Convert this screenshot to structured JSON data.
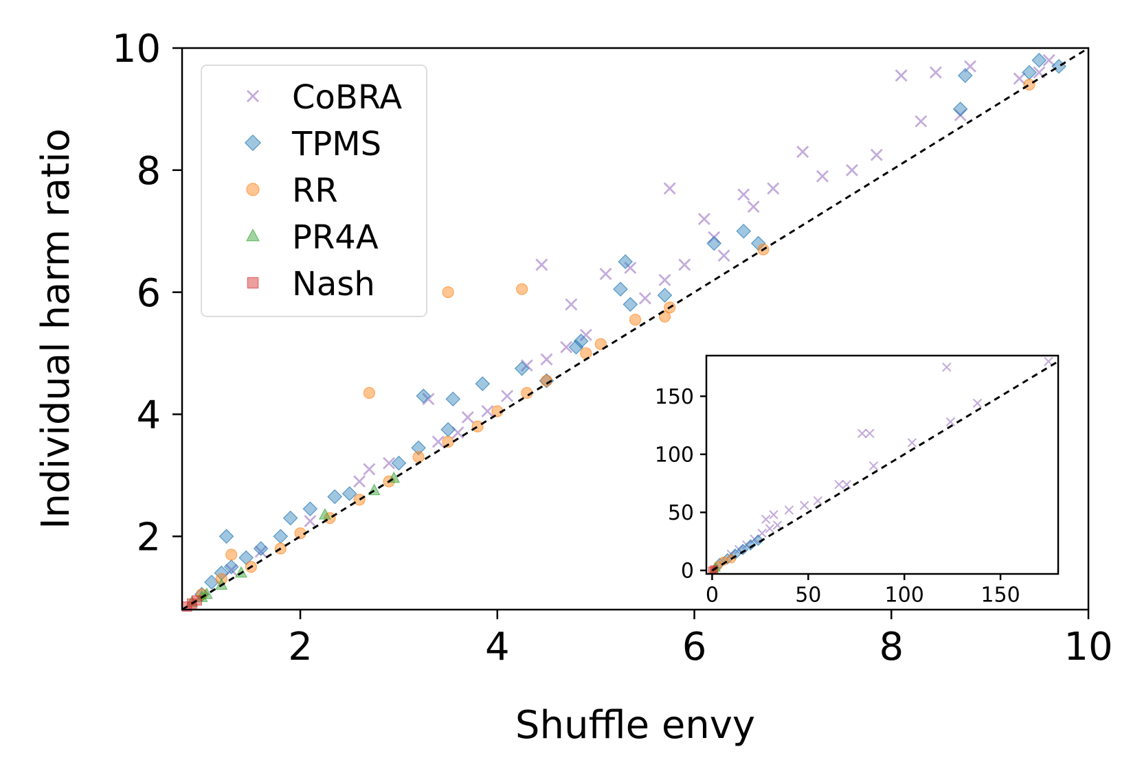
{
  "chart_data": [
    {
      "type": "scatter",
      "title": "",
      "xlabel": "Shuffle envy",
      "ylabel": "Individual harm ratio",
      "xlim": [
        0.8,
        10
      ],
      "ylim": [
        0.8,
        10
      ],
      "xticks": [
        "2",
        "4",
        "6",
        "8",
        "10"
      ],
      "yticks": [
        "2",
        "4",
        "6",
        "8",
        "10"
      ],
      "grid": false,
      "legend_position": "top-left",
      "reference_line": {
        "style": "dashed",
        "color": "#000000",
        "from": [
          0.8,
          0.8
        ],
        "to": [
          10,
          10
        ]
      },
      "series": [
        {
          "name": "CoBRA",
          "marker": "x",
          "color": "#9467bd",
          "points": [
            [
              1.3,
              1.45
            ],
            [
              1.6,
              1.75
            ],
            [
              2.1,
              2.25
            ],
            [
              2.6,
              2.9
            ],
            [
              2.7,
              3.1
            ],
            [
              2.9,
              3.2
            ],
            [
              3.3,
              4.25
            ],
            [
              3.4,
              3.55
            ],
            [
              3.6,
              3.7
            ],
            [
              3.7,
              3.95
            ],
            [
              3.9,
              4.05
            ],
            [
              4.1,
              4.3
            ],
            [
              4.3,
              4.8
            ],
            [
              4.5,
              4.9
            ],
            [
              4.7,
              5.1
            ],
            [
              4.75,
              5.8
            ],
            [
              4.9,
              5.3
            ],
            [
              5.1,
              6.3
            ],
            [
              5.35,
              6.4
            ],
            [
              5.5,
              5.9
            ],
            [
              5.7,
              6.2
            ],
            [
              5.9,
              6.45
            ],
            [
              6.1,
              7.2
            ],
            [
              6.2,
              6.9
            ],
            [
              6.3,
              6.6
            ],
            [
              6.5,
              7.6
            ],
            [
              6.6,
              7.4
            ],
            [
              6.8,
              7.7
            ],
            [
              7.1,
              8.3
            ],
            [
              7.3,
              7.9
            ],
            [
              7.6,
              8.0
            ],
            [
              7.85,
              8.25
            ],
            [
              8.3,
              8.8
            ],
            [
              8.7,
              8.9
            ],
            [
              8.8,
              9.7
            ],
            [
              9.3,
              9.5
            ],
            [
              9.5,
              9.6
            ],
            [
              9.6,
              9.8
            ],
            [
              5.75,
              7.7
            ],
            [
              4.45,
              6.45
            ],
            [
              8.45,
              9.6
            ],
            [
              8.1,
              9.55
            ]
          ]
        },
        {
          "name": "TPMS",
          "marker": "D",
          "color": "#1f77b4",
          "points": [
            [
              1.0,
              1.05
            ],
            [
              1.1,
              1.25
            ],
            [
              1.2,
              1.4
            ],
            [
              1.25,
              2.0
            ],
            [
              1.3,
              1.5
            ],
            [
              1.45,
              1.65
            ],
            [
              1.6,
              1.8
            ],
            [
              1.8,
              2.0
            ],
            [
              1.9,
              2.3
            ],
            [
              2.1,
              2.45
            ],
            [
              2.35,
              2.65
            ],
            [
              2.5,
              2.7
            ],
            [
              3.0,
              3.2
            ],
            [
              3.2,
              3.45
            ],
            [
              3.25,
              4.3
            ],
            [
              3.5,
              3.75
            ],
            [
              3.55,
              4.25
            ],
            [
              3.85,
              4.5
            ],
            [
              4.25,
              4.75
            ],
            [
              4.5,
              4.55
            ],
            [
              4.8,
              5.1
            ],
            [
              4.85,
              5.2
            ],
            [
              5.25,
              6.05
            ],
            [
              5.3,
              6.5
            ],
            [
              5.35,
              5.8
            ],
            [
              5.7,
              5.95
            ],
            [
              6.2,
              6.8
            ],
            [
              6.5,
              7.0
            ],
            [
              6.65,
              6.8
            ],
            [
              8.7,
              9.0
            ],
            [
              8.75,
              9.55
            ],
            [
              9.4,
              9.6
            ],
            [
              9.5,
              9.8
            ],
            [
              9.7,
              9.7
            ]
          ]
        },
        {
          "name": "RR",
          "marker": "o",
          "color": "#ff7f0e",
          "points": [
            [
              1.0,
              1.05
            ],
            [
              1.2,
              1.3
            ],
            [
              1.3,
              1.7
            ],
            [
              1.5,
              1.5
            ],
            [
              1.8,
              1.8
            ],
            [
              2.0,
              2.05
            ],
            [
              2.3,
              2.3
            ],
            [
              2.6,
              2.6
            ],
            [
              2.7,
              4.35
            ],
            [
              2.9,
              2.9
            ],
            [
              3.2,
              3.3
            ],
            [
              3.5,
              3.55
            ],
            [
              3.5,
              6.0
            ],
            [
              3.8,
              3.8
            ],
            [
              4.0,
              4.05
            ],
            [
              4.25,
              6.05
            ],
            [
              4.3,
              4.35
            ],
            [
              4.5,
              4.55
            ],
            [
              4.9,
              5.0
            ],
            [
              5.05,
              5.15
            ],
            [
              5.4,
              5.55
            ],
            [
              5.7,
              5.6
            ],
            [
              5.75,
              5.75
            ],
            [
              6.7,
              6.7
            ],
            [
              9.4,
              9.4
            ]
          ]
        },
        {
          "name": "PR4A",
          "marker": "^",
          "color": "#2ca02c",
          "points": [
            [
              0.9,
              0.92
            ],
            [
              1.0,
              1.0
            ],
            [
              1.05,
              1.05
            ],
            [
              1.2,
              1.2
            ],
            [
              1.4,
              1.4
            ],
            [
              2.25,
              2.35
            ],
            [
              2.75,
              2.75
            ],
            [
              2.95,
              2.95
            ]
          ]
        },
        {
          "name": "Nash",
          "marker": "s",
          "color": "#d62728",
          "points": [
            [
              0.85,
              0.85
            ],
            [
              0.9,
              0.9
            ],
            [
              0.95,
              0.95
            ]
          ]
        }
      ]
    },
    {
      "type": "scatter",
      "title": "",
      "xlabel": "",
      "ylabel": "",
      "xlim": [
        -3,
        180
      ],
      "ylim": [
        -3,
        185
      ],
      "xticks": [
        "0",
        "50",
        "100",
        "150"
      ],
      "yticks": [
        "0",
        "50",
        "100",
        "150"
      ],
      "legend_position": "none",
      "placement": "inset, lower-right",
      "reference_line": {
        "style": "dashed",
        "color": "#000000",
        "from": [
          0,
          0
        ],
        "to": [
          180,
          180
        ]
      },
      "series": [
        {
          "name": "CoBRA",
          "marker": "x",
          "color": "#9467bd",
          "points": [
            [
              122,
              175
            ],
            [
              124,
              128
            ],
            [
              138,
              144
            ],
            [
              175,
              180
            ],
            [
              78,
              118
            ],
            [
              82,
              118
            ],
            [
              84,
              90
            ],
            [
              104,
              110
            ],
            [
              28,
              44
            ],
            [
              32,
              48
            ],
            [
              40,
              52
            ],
            [
              48,
              56
            ],
            [
              55,
              60
            ],
            [
              66,
              74
            ],
            [
              70,
              74
            ],
            [
              10,
              14
            ],
            [
              14,
              18
            ],
            [
              18,
              22
            ],
            [
              22,
              27
            ],
            [
              26,
              32
            ],
            [
              30,
              36
            ],
            [
              34,
              39
            ]
          ]
        },
        {
          "name": "TPMS",
          "marker": "D",
          "color": "#1f77b4",
          "points": [
            [
              4,
              6
            ],
            [
              8,
              10
            ],
            [
              12,
              14
            ],
            [
              16,
              18
            ],
            [
              20,
              22
            ],
            [
              24,
              26
            ]
          ]
        },
        {
          "name": "RR",
          "marker": "o",
          "color": "#ff7f0e",
          "points": [
            [
              3,
              4
            ],
            [
              6,
              8
            ],
            [
              10,
              10
            ]
          ]
        },
        {
          "name": "PR4A",
          "marker": "^",
          "color": "#2ca02c",
          "points": [
            [
              1,
              1
            ],
            [
              2,
              2
            ]
          ]
        },
        {
          "name": "Nash",
          "marker": "s",
          "color": "#d62728",
          "points": [
            [
              0,
              0
            ],
            [
              1,
              1
            ]
          ]
        }
      ]
    }
  ]
}
